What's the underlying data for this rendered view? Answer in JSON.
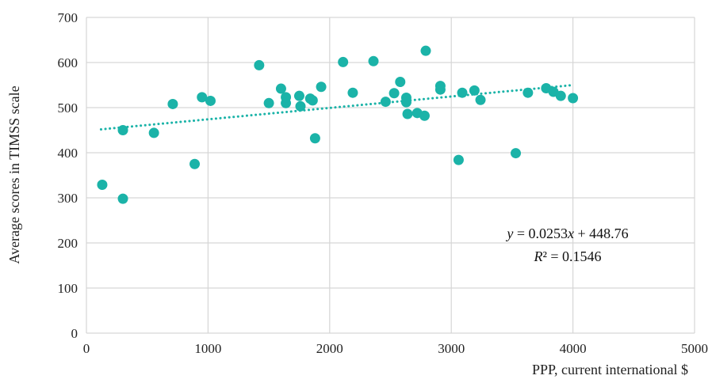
{
  "chart_data": {
    "type": "scatter",
    "title": "",
    "xlabel": "PPP, current international $",
    "ylabel": "Average scores in TIMSS scale",
    "xlim": [
      0,
      5000
    ],
    "ylim": [
      0,
      700
    ],
    "xticks": [
      "0",
      "1000",
      "2000",
      "3000",
      "4000",
      "5000"
    ],
    "yticks": [
      "0",
      "100",
      "200",
      "300",
      "400",
      "500",
      "600",
      "700"
    ],
    "grid": true,
    "point_color": "#1bb3a8",
    "trendline": {
      "type": "linear",
      "slope": 0.0253,
      "intercept": 448.76,
      "x_range": [
        120,
        4000
      ],
      "style": "dotted",
      "color": "#1bb3a8"
    },
    "equation": "y = 0.0253x + 448.76",
    "r_squared": "R² = 0.1546",
    "points": [
      [
        130,
        329
      ],
      [
        300,
        298
      ],
      [
        300,
        450
      ],
      [
        555,
        444
      ],
      [
        710,
        508
      ],
      [
        890,
        375
      ],
      [
        950,
        523
      ],
      [
        1020,
        515
      ],
      [
        1420,
        594
      ],
      [
        1500,
        510
      ],
      [
        1600,
        542
      ],
      [
        1640,
        510
      ],
      [
        1640,
        523
      ],
      [
        1750,
        526
      ],
      [
        1760,
        503
      ],
      [
        1840,
        520
      ],
      [
        1860,
        516
      ],
      [
        1880,
        432
      ],
      [
        1930,
        546
      ],
      [
        2110,
        601
      ],
      [
        2190,
        533
      ],
      [
        2360,
        603
      ],
      [
        2460,
        513
      ],
      [
        2530,
        532
      ],
      [
        2580,
        557
      ],
      [
        2630,
        522
      ],
      [
        2630,
        512
      ],
      [
        2640,
        486
      ],
      [
        2720,
        488
      ],
      [
        2780,
        482
      ],
      [
        2790,
        626
      ],
      [
        2910,
        548
      ],
      [
        2910,
        540
      ],
      [
        3060,
        384
      ],
      [
        3090,
        533
      ],
      [
        3190,
        538
      ],
      [
        3240,
        517
      ],
      [
        3530,
        399
      ],
      [
        3630,
        533
      ],
      [
        3780,
        543
      ],
      [
        3840,
        535
      ],
      [
        3900,
        526
      ],
      [
        4000,
        521
      ]
    ]
  }
}
